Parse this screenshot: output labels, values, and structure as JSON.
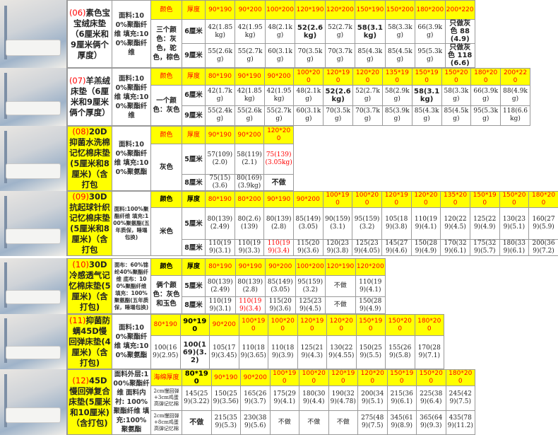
{
  "colors": {
    "header_bg": "#ffff00",
    "header_text": "#ff0000",
    "accent_red": "#ff0000"
  },
  "products": [
    {
      "num": "(06)",
      "title": "素色宝宝绒床垫（6厘米和9厘米俩个厚度）",
      "material": "面料:100%聚酯纤维 填充:100%聚酯纤维",
      "color": "三个颜色：灰色，驼色，棕色",
      "header": [
        "颜色",
        "厚度",
        "90*190",
        "90*200",
        "100*200",
        "120*190",
        "120*200",
        "150*190",
        "150*200",
        "180*200",
        "200*220"
      ],
      "rows": [
        {
          "label": "6厘米",
          "cells": [
            "42(1.85kg)",
            "42(1.95kg)",
            "48(2.1kg)",
            {
              "text": "52(2.6kg)",
              "bold": true
            },
            "52(2.7kg)",
            {
              "text": "58(3.1kg)",
              "bold": true
            },
            "58(3.3kg)",
            "66(3.9kg)",
            {
              "text": "只做灰色 88 (4.9)",
              "bold": true
            }
          ]
        },
        {
          "label": "9厘米",
          "cells": [
            "55(2.6kg)",
            "55(2.7kg)",
            "60(3.1kg)",
            "70(3.5kg)",
            "70(3.7kg)",
            "85(4.3kg)",
            "85(4.5kg)",
            "95(5.3kg)",
            {
              "text": "只做灰色 118 (6.6)",
              "bold": true
            }
          ]
        }
      ]
    },
    {
      "num": "(07)",
      "title": "羊羔绒床垫（6厘米和9厘米俩个厚度）",
      "material": "面料:100%聚酯纤维 填充:100%聚酯纤维",
      "color": "一个颜色：灰色",
      "header": [
        "颜色",
        "厚度",
        "80*190",
        "90*190",
        "90*200",
        "100*200",
        "120*190",
        "120*200",
        "135*190",
        "150*190",
        "150*200",
        "180*200",
        "200*220"
      ],
      "rows": [
        {
          "label": "6厘米",
          "cells": [
            "42(1.7kg)",
            "42(1.85kg)",
            "42(1.95kg)",
            "48(2.1kg)",
            {
              "text": "52(2.6kg)",
              "bold": true
            },
            "52(2.7kg)",
            "58(2.9kg)",
            {
              "text": "58(3.1kg)",
              "bold": true
            },
            "58(3.3kg)",
            "66(3.9kg)",
            "88(4.9kg)"
          ]
        },
        {
          "label": "9厘米",
          "cells": [
            "55(2.4kg)",
            "55(2.6kg)",
            "55(2.7kg)",
            "60(3.1kg)",
            "70(3.5kg)",
            "70(3.7kg)",
            "85(3.9kg)",
            "85(4.3kg)",
            "85(4.5kg)",
            "95(5.3kg)",
            "118(6.6kg)"
          ]
        }
      ]
    },
    {
      "num": "(08)",
      "title": "20D抑菌水洗棉记忆棉床垫(5厘米和8厘米)（含打包",
      "material": "面料:100%聚酯纤维 填充:100%聚氨酯",
      "color": "灰色",
      "header": [
        "颜色",
        "厚度",
        "90*190",
        "90*200",
        "120*200"
      ],
      "rows": [
        {
          "label": "5厘米",
          "cells": [
            "57(109)(2.0)",
            "58(119)(2.1)",
            {
              "text": "75(139)(3.05kg)",
              "red": true
            }
          ]
        },
        {
          "label": "8厘米",
          "cells": [
            "75(15)(3.6)",
            "80(169)(3.9kg)",
            {
              "text": "不做",
              "bold": true
            }
          ]
        }
      ]
    },
    {
      "num": "(09)",
      "title": "30D抗起球针织记忆棉床垫(5厘米和8厘米)（含打包",
      "material": "面料:100%聚酯纤维 填充:100%聚氨酯(五年质保，睡塌包换)",
      "color": "米色",
      "header": [
        "颜色",
        "厚度",
        "80*190",
        "80*200",
        "90*190",
        "90*200",
        "100*190",
        "100*200",
        "120*190",
        "120*200",
        "135*200",
        "150*190",
        "150*200",
        "180*200"
      ],
      "rows": [
        {
          "label": "5厘米",
          "cells": [
            "80(139)(2.49)",
            "80(2.6)(139)",
            "80(139)(2.8)",
            "85(149)(3.05)",
            "90(159)(3.1)",
            "95(159)(3.2)",
            "105(189)(3.8)",
            "110(199)(4.1)",
            "120(229)(4.5)",
            "125(229)(4.9)",
            "130(239)(5.1)",
            "160(279)(5.9)"
          ]
        },
        {
          "label": "8厘米",
          "cells": [
            "110(199)(3.1)",
            "110(199)(3.3)",
            {
              "text": "110(199)(3.4)",
              "red": true
            },
            "115(209)(3.6)",
            "120(239)(3.8)",
            "125(239)(4.05)",
            "145(279)(4.6)",
            "150(289)(4.9)",
            "170(329)(6.1)",
            "175(329)(5.7)",
            "180(339)(6.1)",
            "200(369)(7.2)"
          ]
        }
      ]
    },
    {
      "num": "(10)",
      "title": "30D冷感透气记忆棉床垫(5厘米)（含打包)",
      "material": "面布：60%锦纶40%聚酯纤维 底布：100%聚酯纤维 填充：100%聚氨酯(五年质保，睡塌包换)",
      "color": "俩个颜色：灰色和玉色",
      "header": [
        "颜色",
        "厚度",
        "80*190",
        "90*190",
        "90*200",
        "100*200",
        "120*190",
        "120*200"
      ],
      "rows": [
        {
          "label": "5厘米",
          "cells": [
            "80(139)(2.49)",
            "80(139)(2.8)",
            "85(149)(3.05)",
            "95(159)(3.2)",
            "不做",
            "110(199)(4.1)"
          ]
        },
        {
          "label": "8厘米",
          "cells": [
            "110(199)(3.1)",
            {
              "text": "110(199)(3.4)",
              "red": true
            },
            "115(209)(3.6)",
            "125(239)(4.5)",
            "不做",
            "150(289)(4.9)"
          ]
        }
      ]
    },
    {
      "num": "(11)",
      "title": "抑菌防螨45D慢回弹床垫(4厘米)（含打包)",
      "material": "面料:100%聚酯纤维 填充:100%聚氨酯",
      "header": [
        "80*190",
        "90*190",
        "90*200",
        "100*190",
        "100*200",
        "120*190",
        "120*200",
        "150*190",
        "150*200",
        "180*200"
      ],
      "rows": [
        {
          "cells": [
            "100(169)(2.95)",
            {
              "text": "100(169)(3.2)",
              "bold": true
            },
            "105(179)(3.45)",
            "110(189)(3.65)",
            "110(189)(3.9)",
            "125(219)(4.3)",
            "130(229)(4.55)",
            "150(259)(5.5)",
            "155(269)(5.8)",
            "170(289)(7.1)"
          ]
        }
      ]
    },
    {
      "num": "(12)",
      "title": "45D慢回弹复合床垫(5厘米和10厘米)（含打包)",
      "material": "面料外层:100%聚酯纤维 面料内衬: 100%聚酯纤维 填充:100%聚氨酯",
      "header": [
        "海绵厚度",
        "80*190",
        "90*190",
        "90*200",
        "100*190",
        "100*200",
        "120*190",
        "120*200",
        "150*190",
        "150*200",
        "180*200"
      ],
      "rows": [
        {
          "label": "2cm慢回弹+3cm鸡蛋高弹记忆棉",
          "cells": [
            "145(259)(3.22)",
            "150(259)(3.56)",
            "165(269)(3.7)",
            "175(299)(4.1)",
            "180(309)(4.4)",
            "190(329)(4.78)",
            "200(349)(5.1)",
            "215(369)(6.1)",
            "225(389)(6.4)",
            "245(429)(7.5)"
          ]
        },
        {
          "label": "2cm慢回弹+8cm鸡蛋高弹记忆棉",
          "cells": [
            {
              "text": "不做",
              "bold": true
            },
            "215(359)(5.3)",
            "230(389)(5.6)",
            "不做",
            "不做",
            "不做",
            "275(489)(7.5)",
            "345(619)(8.9)",
            "365(649)(9.3)",
            "435(789)(11.2)"
          ]
        }
      ]
    }
  ]
}
